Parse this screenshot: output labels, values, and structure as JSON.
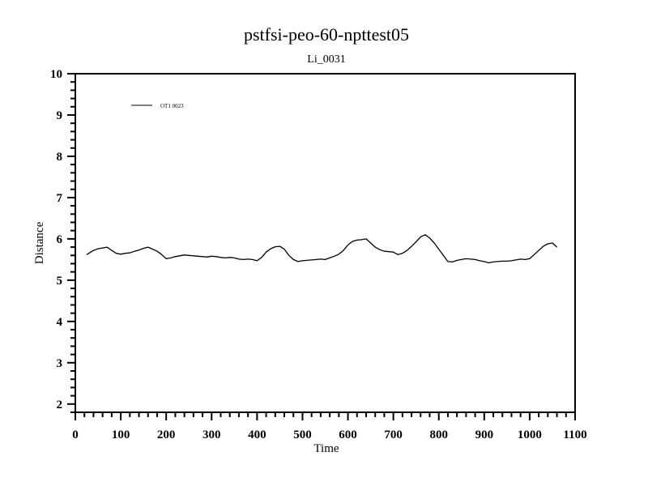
{
  "chart_data": {
    "type": "line",
    "title": "pstfsi-peo-60-npttest05",
    "subtitle": "Li_0031",
    "xlabel": "Time",
    "ylabel": "Distance",
    "xlim": [
      0,
      1100
    ],
    "ylim": [
      1.8,
      10
    ],
    "x_ticks": [
      0,
      100,
      200,
      300,
      400,
      500,
      600,
      700,
      800,
      900,
      1000,
      1100
    ],
    "y_ticks": [
      2,
      3,
      4,
      5,
      6,
      7,
      8,
      9,
      10
    ],
    "x_tick_labels": [
      "0",
      "100",
      "200",
      "300",
      "400",
      "500",
      "600",
      "700",
      "800",
      "900",
      "1000",
      "1100"
    ],
    "y_tick_labels": [
      "2",
      "3",
      "4",
      "5",
      "6",
      "7",
      "8",
      "9",
      "10"
    ],
    "grid": false,
    "legend_position": "top-left",
    "series": [
      {
        "name": "OT1 0023",
        "color": "#000000",
        "x": [
          25,
          40,
          50,
          60,
          70,
          80,
          90,
          100,
          110,
          120,
          130,
          140,
          150,
          160,
          170,
          180,
          190,
          200,
          210,
          220,
          230,
          240,
          250,
          260,
          270,
          280,
          290,
          300,
          310,
          320,
          330,
          340,
          350,
          360,
          370,
          380,
          390,
          400,
          410,
          420,
          430,
          440,
          450,
          460,
          470,
          480,
          490,
          500,
          510,
          520,
          530,
          540,
          550,
          560,
          570,
          580,
          590,
          600,
          610,
          620,
          630,
          640,
          650,
          660,
          670,
          680,
          690,
          700,
          710,
          720,
          730,
          740,
          750,
          760,
          770,
          780,
          790,
          800,
          810,
          820,
          830,
          840,
          850,
          860,
          870,
          880,
          890,
          900,
          910,
          920,
          930,
          940,
          950,
          960,
          970,
          980,
          990,
          1000,
          1010,
          1020,
          1030,
          1040,
          1050,
          1060
        ],
        "y": [
          5.62,
          5.72,
          5.76,
          5.78,
          5.8,
          5.72,
          5.65,
          5.63,
          5.65,
          5.66,
          5.7,
          5.73,
          5.77,
          5.8,
          5.75,
          5.7,
          5.62,
          5.52,
          5.54,
          5.57,
          5.59,
          5.61,
          5.6,
          5.59,
          5.58,
          5.57,
          5.56,
          5.58,
          5.57,
          5.55,
          5.54,
          5.55,
          5.54,
          5.51,
          5.5,
          5.51,
          5.5,
          5.47,
          5.55,
          5.68,
          5.76,
          5.81,
          5.82,
          5.75,
          5.6,
          5.5,
          5.45,
          5.47,
          5.48,
          5.49,
          5.5,
          5.51,
          5.5,
          5.54,
          5.58,
          5.63,
          5.72,
          5.85,
          5.94,
          5.97,
          5.98,
          6.0,
          5.9,
          5.8,
          5.74,
          5.7,
          5.69,
          5.68,
          5.62,
          5.65,
          5.72,
          5.82,
          5.93,
          6.05,
          6.1,
          6.02,
          5.9,
          5.75,
          5.6,
          5.45,
          5.44,
          5.48,
          5.5,
          5.52,
          5.51,
          5.5,
          5.47,
          5.45,
          5.42,
          5.44,
          5.45,
          5.46,
          5.46,
          5.47,
          5.49,
          5.51,
          5.5,
          5.52,
          5.62,
          5.72,
          5.82,
          5.88,
          5.9,
          5.8
        ]
      }
    ]
  }
}
